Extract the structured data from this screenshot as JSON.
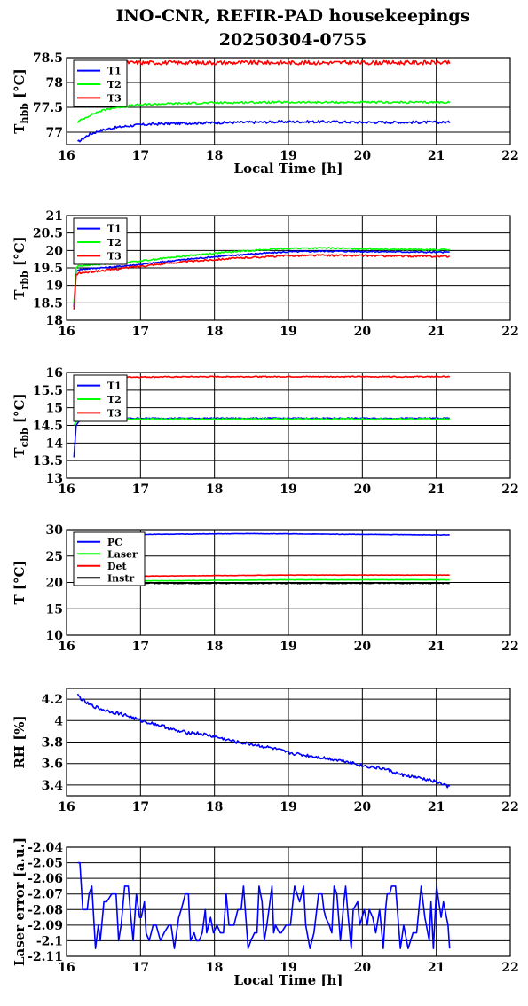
{
  "title": {
    "line1": "INO-CNR, REFIR-PAD housekeepings",
    "line2": "20250304-0755"
  },
  "chart_data": [
    {
      "type": "line",
      "ylabel": "T_hbb [°C]",
      "ylabel_main": "T",
      "ylabel_sub": "hbb",
      "ylabel_unit": " [°C]",
      "xlabel": "Local Time [h]",
      "xlim": [
        16,
        22
      ],
      "ylim": [
        76.75,
        78.5
      ],
      "yticks": [
        77,
        77.5,
        78,
        78.5
      ],
      "xticks": [
        16,
        17,
        18,
        19,
        20,
        21,
        22
      ],
      "grid": true,
      "legend": "top-left",
      "series": [
        {
          "name": "T1",
          "color": "#0000ff",
          "noise": 0.025,
          "x": [
            16.15,
            16.2,
            16.3,
            16.45,
            16.6,
            16.8,
            17.0,
            17.3,
            17.6,
            18.0,
            18.5,
            19.0,
            19.5,
            20.0,
            20.5,
            21.0,
            21.18
          ],
          "y": [
            76.8,
            76.85,
            76.95,
            77.03,
            77.08,
            77.12,
            77.15,
            77.17,
            77.18,
            77.19,
            77.2,
            77.21,
            77.21,
            77.2,
            77.2,
            77.2,
            77.2
          ]
        },
        {
          "name": "T2",
          "color": "#00ff00",
          "noise": 0.02,
          "x": [
            16.15,
            16.2,
            16.3,
            16.45,
            16.6,
            16.8,
            17.0,
            17.3,
            17.6,
            18.0,
            18.5,
            19.0,
            19.5,
            20.0,
            20.5,
            21.0,
            21.18
          ],
          "y": [
            77.2,
            77.25,
            77.33,
            77.42,
            77.48,
            77.52,
            77.55,
            77.57,
            77.58,
            77.59,
            77.6,
            77.6,
            77.6,
            77.6,
            77.6,
            77.6,
            77.6
          ]
        },
        {
          "name": "T3",
          "color": "#ff0000",
          "noise": 0.04,
          "x": [
            16.15,
            17.0,
            18.0,
            19.0,
            20.0,
            21.0,
            21.18
          ],
          "y": [
            78.4,
            78.4,
            78.4,
            78.4,
            78.4,
            78.4,
            78.4
          ]
        }
      ]
    },
    {
      "type": "line",
      "ylabel": "T_rbb [°C]",
      "ylabel_main": "T",
      "ylabel_sub": "rbb",
      "ylabel_unit": " [°C]",
      "xlim": [
        16,
        22
      ],
      "ylim": [
        18,
        21
      ],
      "yticks": [
        18,
        18.5,
        19,
        19.5,
        20,
        20.5,
        21
      ],
      "xticks": [
        16,
        17,
        18,
        19,
        20,
        21,
        22
      ],
      "grid": true,
      "legend": "top-left",
      "series": [
        {
          "name": "T1",
          "color": "#0000ff",
          "noise": 0.02,
          "x": [
            16.1,
            16.13,
            16.16,
            16.3,
            16.6,
            17.0,
            17.5,
            18.0,
            18.5,
            19.0,
            19.5,
            20.0,
            20.5,
            21.0,
            21.18
          ],
          "y": [
            18.4,
            19.4,
            19.45,
            19.48,
            19.52,
            19.6,
            19.72,
            19.82,
            19.9,
            19.96,
            19.98,
            19.97,
            19.96,
            19.95,
            19.95
          ]
        },
        {
          "name": "T2",
          "color": "#00ff00",
          "noise": 0.02,
          "x": [
            16.1,
            16.13,
            16.16,
            16.3,
            16.6,
            17.0,
            17.5,
            18.0,
            18.5,
            19.0,
            19.5,
            20.0,
            20.5,
            21.0,
            21.18
          ],
          "y": [
            18.5,
            19.5,
            19.55,
            19.58,
            19.62,
            19.7,
            19.82,
            19.92,
            20.0,
            20.06,
            20.07,
            20.05,
            20.03,
            20.02,
            20.02
          ]
        },
        {
          "name": "T3",
          "color": "#ff0000",
          "noise": 0.025,
          "x": [
            16.1,
            16.13,
            16.16,
            16.3,
            16.6,
            17.0,
            17.5,
            18.0,
            18.5,
            19.0,
            19.5,
            20.0,
            20.5,
            21.0,
            21.18
          ],
          "y": [
            18.3,
            19.3,
            19.35,
            19.38,
            19.45,
            19.55,
            19.66,
            19.74,
            19.8,
            19.85,
            19.86,
            19.85,
            19.84,
            19.83,
            19.83
          ]
        }
      ]
    },
    {
      "type": "line",
      "ylabel": "T_cbb [°C]",
      "ylabel_main": "T",
      "ylabel_sub": "cbb",
      "ylabel_unit": " [°C]",
      "xlim": [
        16,
        22
      ],
      "ylim": [
        13,
        16
      ],
      "yticks": [
        13,
        13.5,
        14,
        14.5,
        15,
        15.5,
        16
      ],
      "xticks": [
        16,
        17,
        18,
        19,
        20,
        21,
        22
      ],
      "grid": true,
      "legend": "top-left",
      "series": [
        {
          "name": "T1",
          "color": "#0000ff",
          "noise": 0.015,
          "x": [
            16.1,
            16.13,
            16.18,
            16.3,
            17.0,
            18.0,
            19.0,
            20.0,
            21.0,
            21.18
          ],
          "y": [
            13.6,
            14.5,
            14.65,
            14.7,
            14.7,
            14.7,
            14.7,
            14.7,
            14.7,
            14.7
          ]
        },
        {
          "name": "T2",
          "color": "#00ff00",
          "noise": 0.02,
          "x": [
            16.1,
            16.13,
            16.18,
            16.3,
            17.0,
            18.0,
            19.0,
            20.0,
            21.0,
            21.18
          ],
          "y": [
            14.5,
            14.6,
            14.65,
            14.68,
            14.68,
            14.68,
            14.68,
            14.68,
            14.68,
            14.68
          ]
        },
        {
          "name": "T3",
          "color": "#ff0000",
          "noise": 0.015,
          "x": [
            16.1,
            17.0,
            18.0,
            19.0,
            20.0,
            21.0,
            21.18
          ],
          "y": [
            15.87,
            15.87,
            15.88,
            15.88,
            15.88,
            15.88,
            15.88
          ]
        }
      ]
    },
    {
      "type": "line",
      "ylabel": "T [°C]",
      "ylabel_main": "T [°C]",
      "ylabel_sub": "",
      "ylabel_unit": "",
      "xlim": [
        16,
        22
      ],
      "ylim": [
        10,
        30
      ],
      "yticks": [
        10,
        15,
        20,
        25,
        30
      ],
      "xticks": [
        16,
        17,
        18,
        19,
        20,
        21,
        22
      ],
      "grid": true,
      "legend": "top-left",
      "series": [
        {
          "name": "PC",
          "color": "#0000ff",
          "noise": 0.04,
          "x": [
            16.1,
            17.0,
            18.0,
            18.5,
            19.0,
            20.0,
            21.0,
            21.18
          ],
          "y": [
            28.9,
            29.1,
            29.2,
            29.25,
            29.2,
            29.1,
            29.0,
            29.0
          ]
        },
        {
          "name": "Laser",
          "color": "#00ff00",
          "noise": 0.04,
          "x": [
            16.1,
            17.0,
            18.0,
            19.0,
            20.0,
            21.0,
            21.18
          ],
          "y": [
            20.2,
            20.3,
            20.4,
            20.5,
            20.5,
            20.5,
            20.5
          ]
        },
        {
          "name": "Det",
          "color": "#ff0000",
          "noise": 0.03,
          "x": [
            16.1,
            17.0,
            18.0,
            19.0,
            20.0,
            21.0,
            21.18
          ],
          "y": [
            21.0,
            21.2,
            21.3,
            21.4,
            21.4,
            21.4,
            21.4
          ]
        },
        {
          "name": "Instr",
          "color": "#000000",
          "noise": 0.08,
          "x": [
            16.1,
            17.0,
            18.0,
            19.0,
            20.0,
            21.0,
            21.18
          ],
          "y": [
            19.9,
            19.85,
            19.85,
            19.85,
            19.85,
            19.85,
            19.85
          ]
        }
      ]
    },
    {
      "type": "line",
      "ylabel": "RH [%]",
      "ylabel_main": "RH [%]",
      "ylabel_sub": "",
      "ylabel_unit": "",
      "xlim": [
        16,
        22
      ],
      "ylim": [
        3.3,
        4.3
      ],
      "yticks": [
        3.4,
        3.6,
        3.8,
        4,
        4.2
      ],
      "xticks": [
        16,
        17,
        18,
        19,
        20,
        21,
        22
      ],
      "grid": true,
      "series": [
        {
          "name": "",
          "color": "#0000ff",
          "noise": 0.015,
          "x": [
            16.15,
            16.2,
            16.3,
            16.5,
            16.8,
            17.0,
            17.3,
            17.5,
            17.8,
            18.0,
            18.3,
            18.5,
            18.8,
            19.0,
            19.3,
            19.5,
            19.8,
            20.0,
            20.3,
            20.5,
            20.8,
            21.0,
            21.18
          ],
          "y": [
            4.24,
            4.2,
            4.15,
            4.1,
            4.05,
            4.0,
            3.95,
            3.9,
            3.88,
            3.85,
            3.8,
            3.78,
            3.74,
            3.7,
            3.67,
            3.65,
            3.62,
            3.58,
            3.55,
            3.5,
            3.46,
            3.43,
            3.38
          ]
        }
      ]
    },
    {
      "type": "line",
      "ylabel": "Laser error [a.u.]",
      "ylabel_main": "Laser error [a.u.]",
      "ylabel_sub": "",
      "ylabel_unit": "",
      "xlabel": "Local Time [h]",
      "xlim": [
        16,
        22
      ],
      "ylim": [
        -2.11,
        -2.04
      ],
      "yticks": [
        -2.11,
        -2.1,
        -2.09,
        -2.08,
        -2.07,
        -2.06,
        -2.05,
        -2.04
      ],
      "xticks": [
        16,
        17,
        18,
        19,
        20,
        21,
        22
      ],
      "grid": true,
      "series": [
        {
          "name": "",
          "color": "#0000ff",
          "noise": 0,
          "levels": [
            -2.08,
            -2.09,
            -2.075,
            -2.1,
            -2.07,
            -2.095,
            -2.065,
            -2.085,
            -2.105
          ],
          "x": [
            16.15,
            16.18,
            16.22,
            16.28
          ],
          "y": [
            -2.05,
            -2.05,
            -2.08,
            -2.08
          ]
        }
      ]
    }
  ]
}
